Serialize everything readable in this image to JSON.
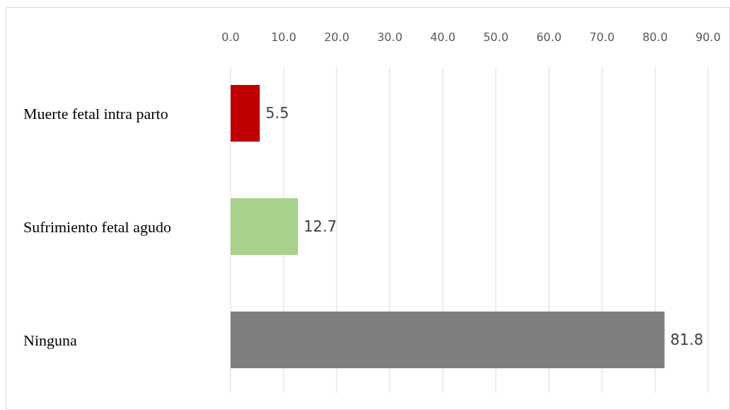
{
  "chart_data": {
    "type": "bar",
    "orientation": "horizontal",
    "categories": [
      "Muerte fetal intra parto",
      "Sufrimiento fetal agudo",
      "Ninguna"
    ],
    "values": [
      5.5,
      12.7,
      81.8
    ],
    "colors": [
      "#c00000",
      "#a9d18e",
      "#7f7f7f"
    ],
    "xlim": [
      0,
      90
    ],
    "xticks": [
      {
        "value": 0,
        "label": "0.0"
      },
      {
        "value": 10,
        "label": "10.0"
      },
      {
        "value": 20,
        "label": "20.0"
      },
      {
        "value": 30,
        "label": "30.0"
      },
      {
        "value": 40,
        "label": "40.0"
      },
      {
        "value": 50,
        "label": "50.0"
      },
      {
        "value": 60,
        "label": "60.0"
      },
      {
        "value": 70,
        "label": "70.0"
      },
      {
        "value": 80,
        "label": "80.0"
      },
      {
        "value": 90,
        "label": "90.0"
      }
    ],
    "grid": "x",
    "data_labels": true
  }
}
